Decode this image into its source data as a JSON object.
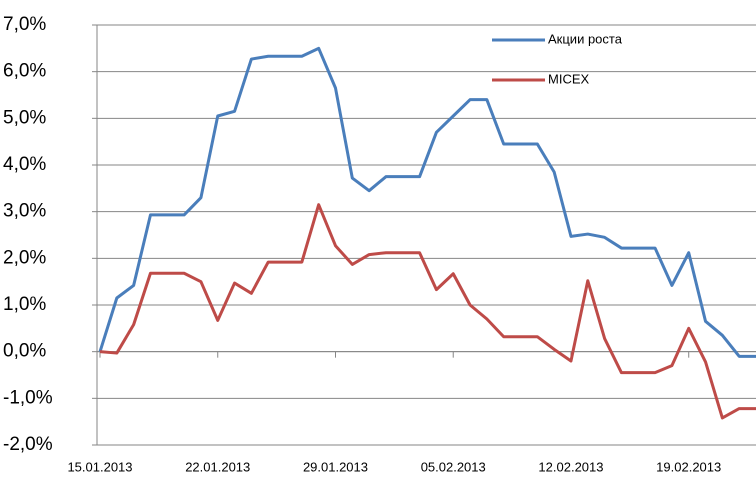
{
  "chart_data": {
    "type": "line",
    "categories": [
      "15.01.2013",
      null,
      null,
      null,
      null,
      null,
      null,
      "22.01.2013",
      null,
      null,
      null,
      null,
      null,
      null,
      "29.01.2013",
      null,
      null,
      null,
      null,
      null,
      null,
      "05.02.2013",
      null,
      null,
      null,
      null,
      null,
      null,
      "12.02.2013",
      null,
      null,
      null,
      null,
      null,
      null,
      "19.02.2013",
      null,
      null,
      null,
      null
    ],
    "series": [
      {
        "name": "Акции роста",
        "color": "#4a7ebb",
        "values": [
          0.0,
          1.15,
          1.42,
          2.93,
          2.93,
          2.93,
          3.3,
          5.05,
          5.15,
          6.27,
          6.33,
          6.33,
          6.33,
          6.5,
          5.65,
          3.72,
          3.45,
          3.75,
          3.75,
          3.75,
          4.7,
          5.05,
          5.4,
          5.4,
          4.45,
          4.45,
          4.45,
          3.85,
          2.47,
          2.52,
          2.45,
          2.22,
          2.22,
          2.22,
          1.42,
          2.12,
          0.65,
          0.35,
          -0.1,
          -0.1
        ]
      },
      {
        "name": "MICEX",
        "color": "#be4b48",
        "values": [
          0.0,
          -0.03,
          0.58,
          1.68,
          1.68,
          1.68,
          1.5,
          0.67,
          1.47,
          1.25,
          1.92,
          1.92,
          1.92,
          3.15,
          2.27,
          1.87,
          2.08,
          2.12,
          2.12,
          2.12,
          1.33,
          1.67,
          1.0,
          0.7,
          0.32,
          0.32,
          0.32,
          0.05,
          -0.2,
          1.52,
          0.28,
          -0.45,
          -0.45,
          -0.45,
          -0.3,
          0.5,
          -0.22,
          -1.42,
          -1.22,
          -1.22
        ]
      }
    ],
    "ylim": [
      -2,
      7
    ],
    "yticks": [
      {
        "value": -2,
        "label": "-2,0%"
      },
      {
        "value": -1,
        "label": "-1,0%"
      },
      {
        "value": 0,
        "label": "0,0%"
      },
      {
        "value": 1,
        "label": "1,0%"
      },
      {
        "value": 2,
        "label": "2,0%"
      },
      {
        "value": 3,
        "label": "3,0%"
      },
      {
        "value": 4,
        "label": "4,0%"
      },
      {
        "value": 5,
        "label": "5,0%"
      },
      {
        "value": 6,
        "label": "6,0%"
      },
      {
        "value": 7,
        "label": "7,0%"
      }
    ],
    "grid": true,
    "legend": "top-right"
  }
}
